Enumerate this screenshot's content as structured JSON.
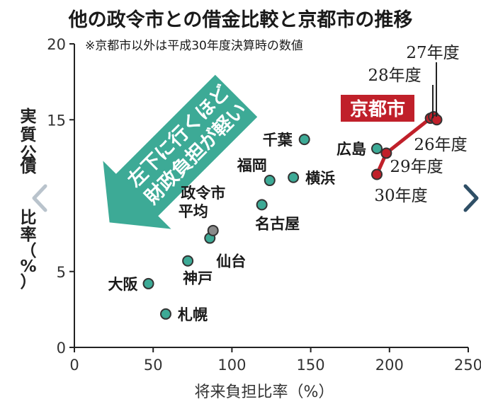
{
  "title": "他の政令市との借金比較と京都市の推移",
  "note": "※京都市以外は平成30年度決算時の数値",
  "arrow_text": [
    "左下に行くほど",
    "財政負担が軽い"
  ],
  "kyoto_badge": "京都市",
  "colors": {
    "teal": "#3daa96",
    "kyoto_red": "#c0202a",
    "average_gray": "#8a8a8a",
    "axis": "#222222",
    "nav": "#b9c3cc",
    "nav_active": "#2f4f66"
  },
  "nav": {
    "prev_icon": "chevron-left-icon",
    "next_icon": "chevron-right-icon"
  },
  "chart_data": {
    "type": "scatter",
    "xlabel": "将来負担比率（%）",
    "ylabel": "実質公債費比率（%）",
    "ylabel_visible": [
      "実",
      "質",
      "公",
      "債",
      "比",
      "率",
      "（",
      "%",
      "）"
    ],
    "xlim": [
      0,
      250
    ],
    "ylim": [
      0,
      20
    ],
    "xticks": [
      0,
      50,
      100,
      150,
      200,
      250
    ],
    "yticks": [
      0,
      5,
      15,
      20
    ],
    "grid": false,
    "series": [
      {
        "points": [
          {
            "label": "千葉",
            "x": 146,
            "y": 13.7
          },
          {
            "label": "福岡",
            "x": 124,
            "y": 11.0
          },
          {
            "label": "横浜",
            "x": 139,
            "y": 11.2
          },
          {
            "label": "名古屋",
            "x": 119,
            "y": 9.4
          },
          {
            "label": "仙台",
            "x": 86,
            "y": 7.2
          },
          {
            "label": "神戸",
            "x": 72,
            "y": 5.7
          },
          {
            "label": "大阪",
            "x": 47,
            "y": 4.2
          },
          {
            "label": "札幌",
            "x": 58,
            "y": 2.2
          },
          {
            "label": "広島",
            "x": 192,
            "y": 13.1
          }
        ]
      },
      {
        "points": [
          {
            "label": "政令市平均",
            "x": 88,
            "y": 7.7
          }
        ]
      },
      {
        "name": "京都市",
        "points": [
          {
            "label": "27年度",
            "x": 228,
            "y": 15.2
          },
          {
            "label": "26年度",
            "x": 230,
            "y": 15.0
          },
          {
            "label": "28年度",
            "x": 226,
            "y": 15.1
          },
          {
            "label": "29年度",
            "x": 198,
            "y": 12.8
          },
          {
            "label": "30年度",
            "x": 192,
            "y": 11.4
          }
        ],
        "path_order": [
          "30年度",
          "29年度",
          "28年度",
          "27年度",
          "26年度"
        ]
      }
    ]
  }
}
